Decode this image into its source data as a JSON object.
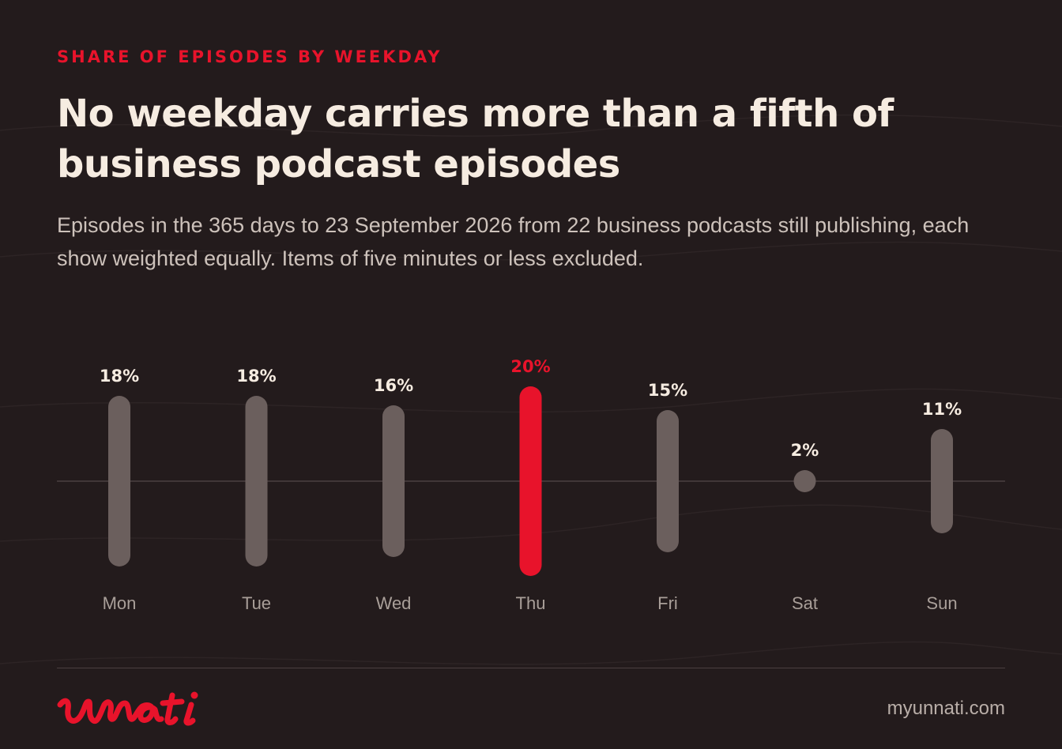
{
  "eyebrow": "SHARE OF EPISODES BY WEEKDAY",
  "headline": "No weekday carries more than a fifth of business podcast episodes",
  "subtitle": "Episodes in the 365 days to 23 September 2026 from 22 business podcasts still publishing, each show weighted equally. Items of five minutes or less excluded.",
  "brand": {
    "logo_text": "unnati",
    "site": "myunnati.com"
  },
  "colors": {
    "background": "#231b1c",
    "accent": "#e8132b",
    "bar": "#6b5f5d",
    "text": "#f6ece1",
    "muted": "#a99f99"
  },
  "chart_data": {
    "type": "bar",
    "categories": [
      "Mon",
      "Tue",
      "Wed",
      "Thu",
      "Fri",
      "Sat",
      "Sun"
    ],
    "values": [
      18,
      18,
      16,
      20,
      15,
      2,
      11
    ],
    "value_labels": [
      "18%",
      "18%",
      "16%",
      "20%",
      "15%",
      "2%",
      "11%"
    ],
    "highlight": "Thu",
    "unit": "%",
    "grid": false,
    "legend": "none"
  }
}
